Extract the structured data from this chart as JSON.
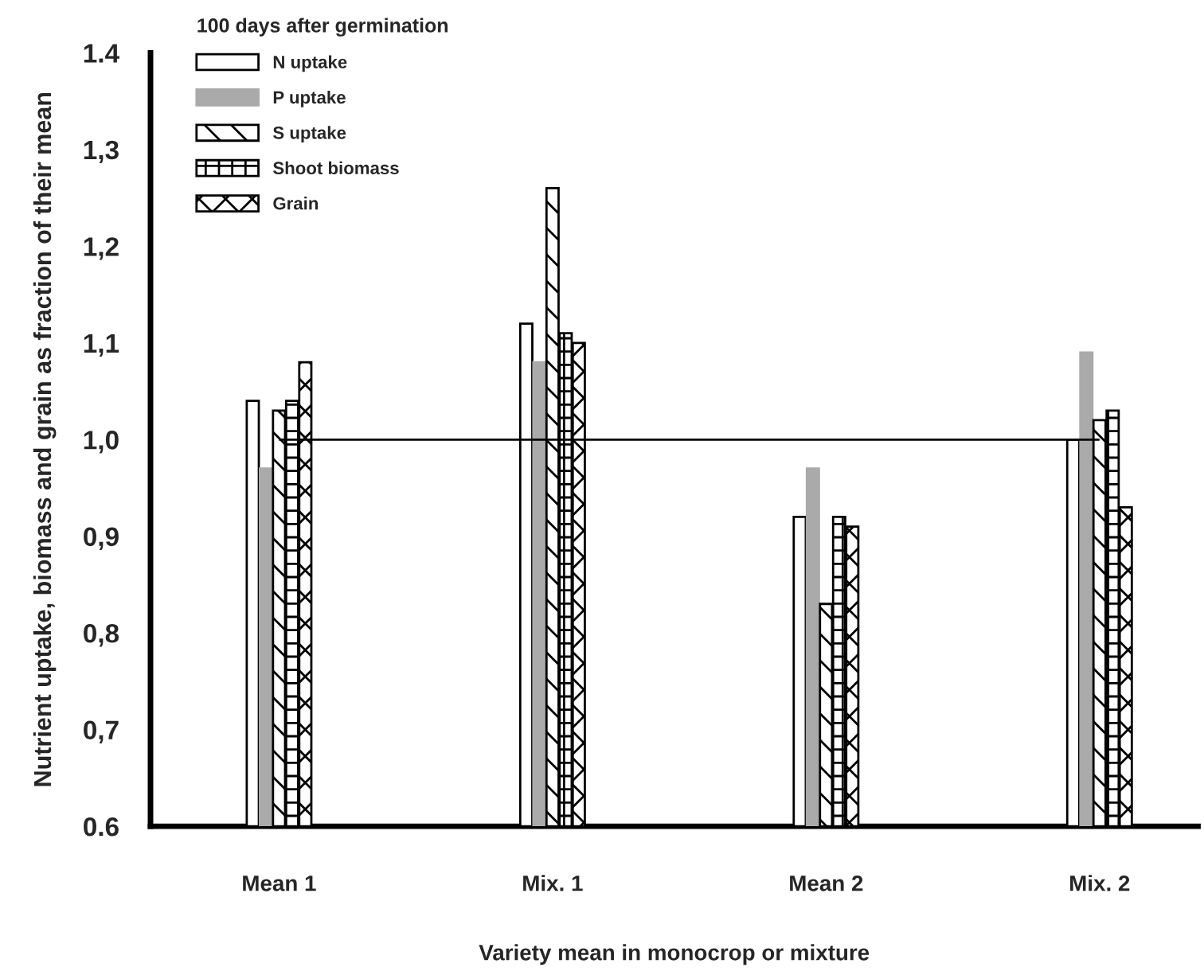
{
  "chart_data": {
    "type": "bar",
    "xlabel": "Variety mean in monocrop or mixture",
    "ylabel": "Nutrient uptake, biomass and grain as fraction of their mean",
    "legend_title": "100 days after germination",
    "categories": [
      "Mean 1",
      "Mix. 1",
      "Mean 2",
      "Mix. 2"
    ],
    "series": [
      {
        "name": "N uptake",
        "color": "#ffffff",
        "values": [
          1.04,
          1.12,
          0.92,
          1.0
        ]
      },
      {
        "name": "P uptake",
        "color": "#aaaaaa",
        "values": [
          0.97,
          1.08,
          0.97,
          1.09
        ]
      },
      {
        "name": "S uptake",
        "color": "#000000",
        "values": [
          1.03,
          1.26,
          0.83,
          1.02
        ]
      },
      {
        "name": "Shoot biomass",
        "color": "#000000",
        "values": [
          1.04,
          1.11,
          0.92,
          1.03
        ]
      },
      {
        "name": "Grain",
        "color": "#000000",
        "values": [
          1.08,
          1.1,
          0.91,
          0.93
        ]
      }
    ],
    "ylim": [
      0.6,
      1.4
    ],
    "yticks": [
      {
        "value": 0.6,
        "label": "0.6"
      },
      {
        "value": 0.7,
        "label": "0,7"
      },
      {
        "value": 0.8,
        "label": "0,8"
      },
      {
        "value": 0.9,
        "label": "0,9"
      },
      {
        "value": 1.0,
        "label": "1,0"
      },
      {
        "value": 1.1,
        "label": "1,1"
      },
      {
        "value": 1.2,
        "label": "1,2"
      },
      {
        "value": 1.3,
        "label": "1,3"
      },
      {
        "value": 1.4,
        "label": "1.4"
      }
    ],
    "ref_lines": [
      {
        "axis": "y",
        "value": 1.0,
        "color": "#000000"
      }
    ],
    "grid": false,
    "legend": "top left"
  }
}
